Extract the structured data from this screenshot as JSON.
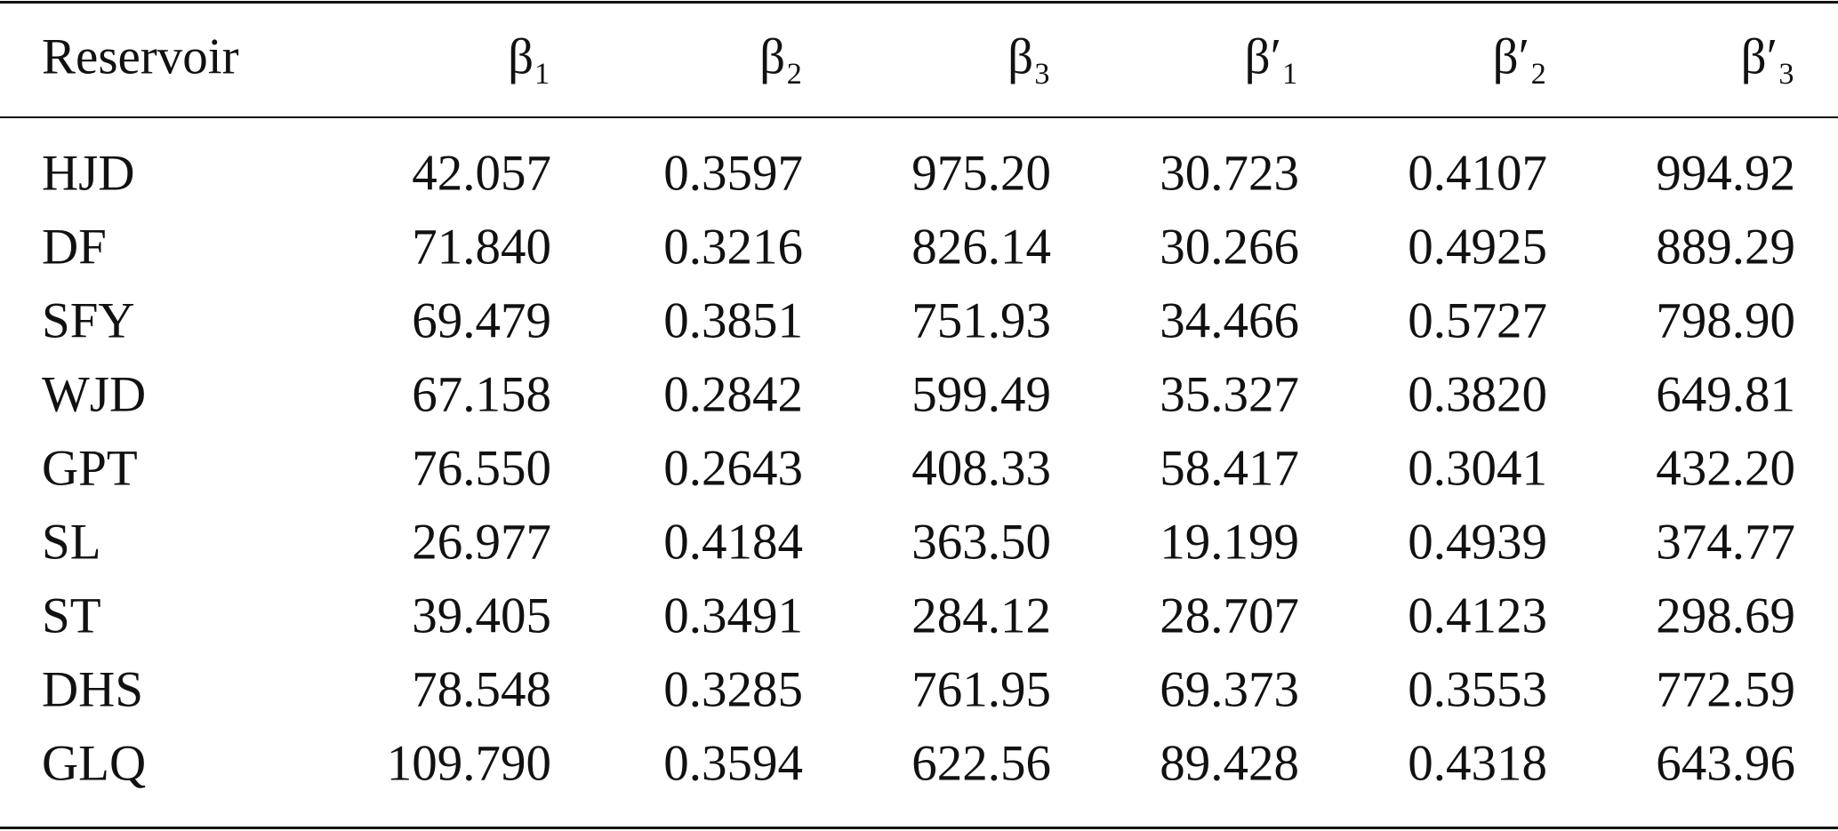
{
  "table": {
    "columns": [
      "Reservoir",
      "β₁",
      "β₂",
      "β₃",
      "β′₁",
      "β′₂",
      "β′₃"
    ],
    "rows": [
      [
        "HJD",
        "42.057",
        "0.3597",
        "975.20",
        "30.723",
        "0.4107",
        "994.92"
      ],
      [
        "DF",
        "71.840",
        "0.3216",
        "826.14",
        "30.266",
        "0.4925",
        "889.29"
      ],
      [
        "SFY",
        "69.479",
        "0.3851",
        "751.93",
        "34.466",
        "0.5727",
        "798.90"
      ],
      [
        "WJD",
        "67.158",
        "0.2842",
        "599.49",
        "35.327",
        "0.3820",
        "649.81"
      ],
      [
        "GPT",
        "76.550",
        "0.2643",
        "408.33",
        "58.417",
        "0.3041",
        "432.20"
      ],
      [
        "SL",
        "26.977",
        "0.4184",
        "363.50",
        "19.199",
        "0.4939",
        "374.77"
      ],
      [
        "ST",
        "39.405",
        "0.3491",
        "284.12",
        "28.707",
        "0.4123",
        "298.69"
      ],
      [
        "DHS",
        "78.548",
        "0.3285",
        "761.95",
        "69.373",
        "0.3553",
        "772.59"
      ],
      [
        "GLQ",
        "109.790",
        "0.3594",
        "622.56",
        "89.428",
        "0.4318",
        "643.96"
      ]
    ]
  }
}
